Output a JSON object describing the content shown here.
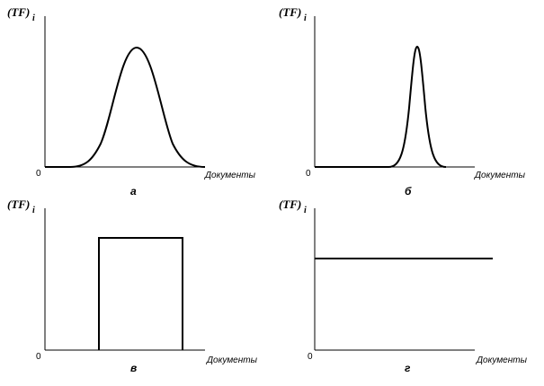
{
  "panels": [
    {
      "y_label": "(TF)",
      "y_label_sub": "i",
      "origin": "0",
      "x_label": "Документы",
      "caption": "а"
    },
    {
      "y_label": "(TF)",
      "y_label_sub": "i",
      "origin": "0",
      "x_label": "Документы",
      "caption": "б"
    },
    {
      "y_label": "(TF)",
      "y_label_sub": "i",
      "origin": "0",
      "x_label": "Документы",
      "caption": "в"
    },
    {
      "y_label": "(TF)",
      "y_label_sub": "i",
      "origin": "0",
      "x_label": "Документы",
      "caption": "г"
    }
  ]
}
